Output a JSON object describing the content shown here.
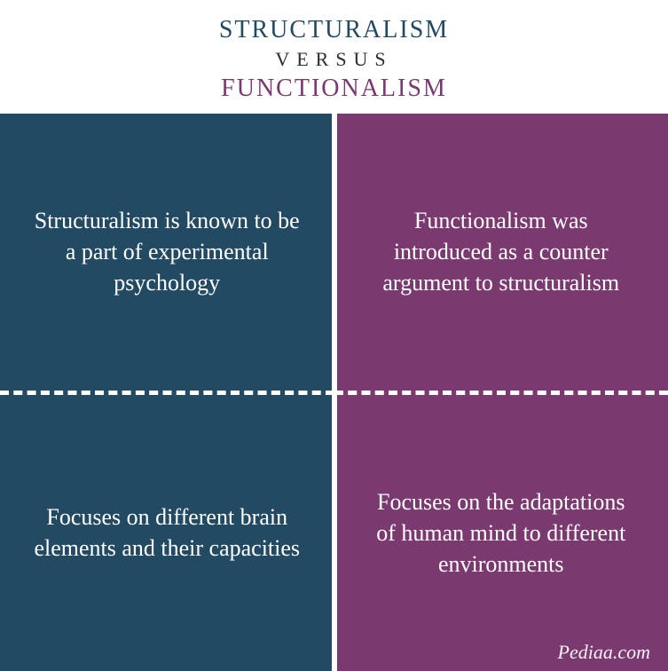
{
  "header": {
    "title_a": "STRUCTURALISM",
    "versus": "VERSUS",
    "title_b": "FUNCTIONALISM",
    "color_a": "#234a63",
    "color_b": "#7a3a70",
    "vs_color": "#2c2c2c",
    "title_fontsize": 28,
    "vs_fontsize": 22
  },
  "columns": {
    "left": {
      "bg": "#234a63",
      "cells": [
        "Structuralism is known to be a part of experimental psychology",
        "Focuses on different brain elements and their capacities"
      ]
    },
    "right": {
      "bg": "#7a3a70",
      "cells": [
        "Functionalism was introduced as a counter argument to structuralism",
        "Focuses on the adaptations of human mind to different environments"
      ]
    }
  },
  "cell_style": {
    "fontsize": 26,
    "text_color": "#ffffff",
    "divider_color": "#ffffff"
  },
  "attribution": {
    "text": "Pediaa.com",
    "color": "#f5f2f6",
    "fontsize": 22
  }
}
